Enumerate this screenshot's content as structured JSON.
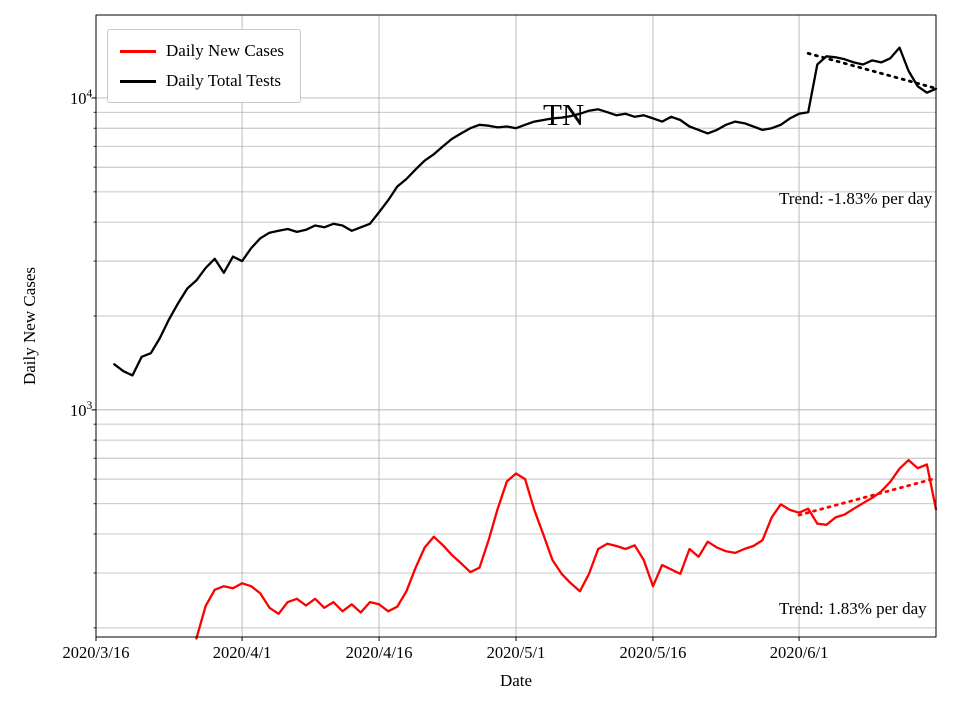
{
  "figure": {
    "title": "TN",
    "xlabel": "Date",
    "ylabel": "Daily New Cases",
    "background_color": "#ffffff",
    "grid_color": "#b4b4b4",
    "axis_color": "#000000"
  },
  "legend": {
    "items": [
      {
        "label": "Daily New Cases",
        "color": "#ff0000"
      },
      {
        "label": "Daily Total Tests",
        "color": "#000000"
      }
    ]
  },
  "annotations": {
    "trend_tests_label": "Trend: -1.83% per day",
    "trend_cases_label": "Trend: 1.83% per day"
  },
  "chart_data": {
    "type": "line",
    "title": "TN",
    "xlabel": "Date",
    "ylabel": "Daily New Cases",
    "y_scale": "log",
    "ylim": [
      187,
      18450
    ],
    "x_unit": "days since 2020/3/16",
    "xlim": [
      0,
      92
    ],
    "x_ticks": [
      {
        "day": 0,
        "label": "2020/3/16"
      },
      {
        "day": 16,
        "label": "2020/4/1"
      },
      {
        "day": 31,
        "label": "2020/4/16"
      },
      {
        "day": 46,
        "label": "2020/5/1"
      },
      {
        "day": 61,
        "label": "2020/5/16"
      },
      {
        "day": 77,
        "label": "2020/6/1"
      }
    ],
    "y_ticks": [
      {
        "value": 1000,
        "mantissa": "10",
        "exponent": "3"
      },
      {
        "value": 10000,
        "mantissa": "10",
        "exponent": "4"
      }
    ],
    "series": [
      {
        "name": "Daily Total Tests",
        "color": "#000000",
        "start_date": "2020/3/18",
        "start_day": 2,
        "values": [
          1400,
          1330,
          1290,
          1480,
          1520,
          1700,
          1950,
          2200,
          2450,
          2600,
          2850,
          3050,
          2750,
          3100,
          3000,
          3300,
          3550,
          3700,
          3750,
          3800,
          3720,
          3780,
          3900,
          3850,
          3950,
          3900,
          3750,
          3850,
          3950,
          4300,
          4700,
          5200,
          5500,
          5900,
          6300,
          6600,
          7000,
          7400,
          7700,
          8000,
          8200,
          8150,
          8050,
          8100,
          8000,
          8200,
          8400,
          8500,
          8600,
          8650,
          8750,
          8900,
          9100,
          9200,
          9000,
          8800,
          8900,
          8700,
          8800,
          8600,
          8400,
          8700,
          8500,
          8100,
          7900,
          7700,
          7900,
          8200,
          8400,
          8300,
          8100,
          7900,
          8000,
          8200,
          8600,
          8900,
          9000,
          12800,
          13600,
          13500,
          13300,
          13000,
          12800,
          13200,
          13000,
          13400,
          14500,
          12200,
          10900,
          10400,
          10700
        ]
      },
      {
        "name": "Daily New Cases",
        "color": "#ff0000",
        "start_date": "2020/3/27",
        "start_day": 11,
        "values": [
          185,
          235,
          265,
          272,
          268,
          278,
          272,
          258,
          232,
          222,
          242,
          248,
          236,
          248,
          232,
          242,
          226,
          238,
          224,
          242,
          238,
          226,
          234,
          262,
          312,
          362,
          392,
          368,
          342,
          322,
          302,
          312,
          382,
          482,
          590,
          625,
          600,
          478,
          398,
          330,
          298,
          278,
          262,
          298,
          358,
          372,
          366,
          358,
          368,
          330,
          272,
          318,
          308,
          298,
          358,
          338,
          378,
          362,
          352,
          348,
          358,
          366,
          382,
          452,
          498,
          478,
          468,
          482,
          432,
          428,
          452,
          462,
          482,
          502,
          522,
          548,
          588,
          648,
          690,
          650,
          668,
          480
        ]
      }
    ],
    "trend_lines": [
      {
        "name": "tests-trend",
        "color": "#000000",
        "style": "dotted",
        "start_day": 78,
        "end_day": 92,
        "start_value": 13900,
        "rate_pct_per_day": -1.83
      },
      {
        "name": "cases-trend",
        "color": "#ff0000",
        "style": "dotted",
        "start_day": 77,
        "end_day": 92,
        "start_value": 460,
        "rate_pct_per_day": 1.83
      }
    ]
  }
}
